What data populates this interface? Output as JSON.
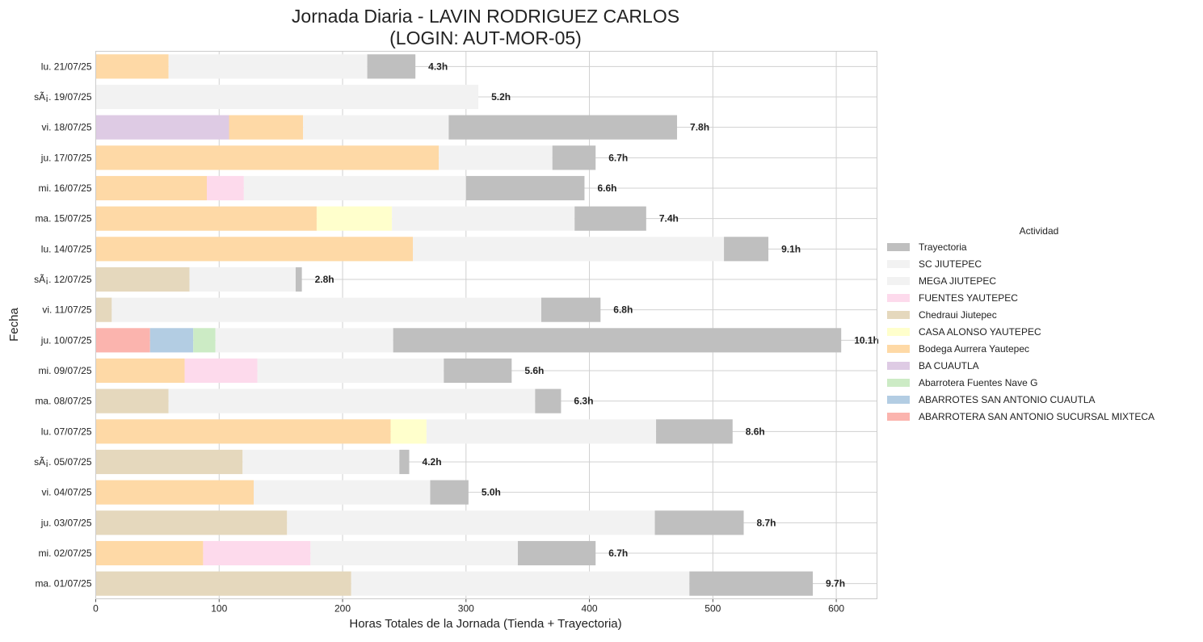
{
  "chart_data": {
    "type": "bar",
    "orientation": "horizontal",
    "stacked": true,
    "title": "Jornada Diaria - LAVIN RODRIGUEZ CARLOS",
    "subtitle": "(LOGIN: AUT-MOR-05)",
    "xlabel": "Horas Totales de la Jornada (Tienda + Trayectoria)",
    "ylabel": "Fecha",
    "xlim": [
      0,
      633
    ],
    "x_ticks": [
      0,
      100,
      200,
      300,
      400,
      500,
      600
    ],
    "grid": true,
    "legend_title": "Actividad",
    "legend_position": "center-right",
    "categories": [
      "lu. 21/07/25",
      "sÃ¡. 19/07/25",
      "vi. 18/07/25",
      "ju. 17/07/25",
      "mi. 16/07/25",
      "ma. 15/07/25",
      "lu. 14/07/25",
      "sÃ¡. 12/07/25",
      "vi. 11/07/25",
      "ju. 10/07/25",
      "mi. 09/07/25",
      "ma. 08/07/25",
      "lu. 07/07/25",
      "sÃ¡. 05/07/25",
      "vi. 04/07/25",
      "ju. 03/07/25",
      "mi. 02/07/25",
      "ma. 01/07/25"
    ],
    "legend": [
      {
        "name": "Trayectoria",
        "color": "#bfbfbf"
      },
      {
        "name": "SC JIUTEPEC",
        "color": "#f2f2f2"
      },
      {
        "name": "MEGA JIUTEPEC",
        "color": "#f2f2f2"
      },
      {
        "name": "FUENTES YAUTEPEC",
        "color": "#fddaec"
      },
      {
        "name": "Chedraui Jiutepec",
        "color": "#e5d8bd"
      },
      {
        "name": "CASA ALONSO YAUTEPEC",
        "color": "#ffffcc"
      },
      {
        "name": "Bodega Aurrera Yautepec",
        "color": "#fed9a6"
      },
      {
        "name": "BA CUAUTLA",
        "color": "#decbe4"
      },
      {
        "name": "Abarrotera Fuentes Nave G",
        "color": "#ccebc5"
      },
      {
        "name": "ABARROTES SAN ANTONIO CUAUTLA",
        "color": "#b3cde3"
      },
      {
        "name": "ABARROTERA SAN ANTONIO SUCURSAL MIXTECA",
        "color": "#fbb4ae"
      }
    ],
    "rows": [
      {
        "label": "4.3h",
        "segments": [
          {
            "series": "Bodega Aurrera Yautepec",
            "value": 59
          },
          {
            "series": "SC JIUTEPEC",
            "value": 161
          },
          {
            "series": "Trayectoria",
            "value": 39
          }
        ]
      },
      {
        "label": "5.2h",
        "segments": [
          {
            "series": "SC JIUTEPEC",
            "value": 310
          }
        ]
      },
      {
        "label": "7.8h",
        "segments": [
          {
            "series": "BA CUAUTLA",
            "value": 108
          },
          {
            "series": "Bodega Aurrera Yautepec",
            "value": 60
          },
          {
            "series": "SC JIUTEPEC",
            "value": 118
          },
          {
            "series": "Trayectoria",
            "value": 185
          }
        ]
      },
      {
        "label": "6.7h",
        "segments": [
          {
            "series": "Bodega Aurrera Yautepec",
            "value": 278
          },
          {
            "series": "SC JIUTEPEC",
            "value": 92
          },
          {
            "series": "Trayectoria",
            "value": 35
          }
        ]
      },
      {
        "label": "6.6h",
        "segments": [
          {
            "series": "Bodega Aurrera Yautepec",
            "value": 90
          },
          {
            "series": "FUENTES YAUTEPEC",
            "value": 30
          },
          {
            "series": "SC JIUTEPEC",
            "value": 180
          },
          {
            "series": "Trayectoria",
            "value": 96
          }
        ]
      },
      {
        "label": "7.4h",
        "segments": [
          {
            "series": "Bodega Aurrera Yautepec",
            "value": 179
          },
          {
            "series": "CASA ALONSO YAUTEPEC",
            "value": 61
          },
          {
            "series": "SC JIUTEPEC",
            "value": 148
          },
          {
            "series": "Trayectoria",
            "value": 58
          }
        ]
      },
      {
        "label": "9.1h",
        "segments": [
          {
            "series": "Bodega Aurrera Yautepec",
            "value": 257
          },
          {
            "series": "SC JIUTEPEC",
            "value": 252
          },
          {
            "series": "Trayectoria",
            "value": 36
          }
        ]
      },
      {
        "label": "2.8h",
        "segments": [
          {
            "series": "Chedraui Jiutepec",
            "value": 76
          },
          {
            "series": "SC JIUTEPEC",
            "value": 86
          },
          {
            "series": "Trayectoria",
            "value": 5
          }
        ]
      },
      {
        "label": "6.8h",
        "segments": [
          {
            "series": "Chedraui Jiutepec",
            "value": 13
          },
          {
            "series": "SC JIUTEPEC",
            "value": 348
          },
          {
            "series": "Trayectoria",
            "value": 48
          }
        ]
      },
      {
        "label": "10.1h",
        "segments": [
          {
            "series": "ABARROTERA SAN ANTONIO SUCURSAL MIXTECA",
            "value": 44
          },
          {
            "series": "ABARROTES SAN ANTONIO CUAUTLA",
            "value": 35
          },
          {
            "series": "Abarrotera Fuentes Nave G",
            "value": 18
          },
          {
            "series": "SC JIUTEPEC",
            "value": 144
          },
          {
            "series": "Trayectoria",
            "value": 363
          }
        ]
      },
      {
        "label": "5.6h",
        "segments": [
          {
            "series": "Bodega Aurrera Yautepec",
            "value": 72
          },
          {
            "series": "FUENTES YAUTEPEC",
            "value": 59
          },
          {
            "series": "SC JIUTEPEC",
            "value": 151
          },
          {
            "series": "Trayectoria",
            "value": 55
          }
        ]
      },
      {
        "label": "6.3h",
        "segments": [
          {
            "series": "Chedraui Jiutepec",
            "value": 59
          },
          {
            "series": "SC JIUTEPEC",
            "value": 297
          },
          {
            "series": "Trayectoria",
            "value": 21
          }
        ]
      },
      {
        "label": "8.6h",
        "segments": [
          {
            "series": "Bodega Aurrera Yautepec",
            "value": 239
          },
          {
            "series": "CASA ALONSO YAUTEPEC",
            "value": 29
          },
          {
            "series": "SC JIUTEPEC",
            "value": 186
          },
          {
            "series": "Trayectoria",
            "value": 62
          }
        ]
      },
      {
        "label": "4.2h",
        "segments": [
          {
            "series": "Chedraui Jiutepec",
            "value": 119
          },
          {
            "series": "SC JIUTEPEC",
            "value": 127
          },
          {
            "series": "Trayectoria",
            "value": 8
          }
        ]
      },
      {
        "label": "5.0h",
        "segments": [
          {
            "series": "Bodega Aurrera Yautepec",
            "value": 128
          },
          {
            "series": "SC JIUTEPEC",
            "value": 143
          },
          {
            "series": "Trayectoria",
            "value": 31
          }
        ]
      },
      {
        "label": "8.7h",
        "segments": [
          {
            "series": "Chedraui Jiutepec",
            "value": 155
          },
          {
            "series": "SC JIUTEPEC",
            "value": 298
          },
          {
            "series": "Trayectoria",
            "value": 72
          }
        ]
      },
      {
        "label": "6.7h",
        "segments": [
          {
            "series": "Bodega Aurrera Yautepec",
            "value": 87
          },
          {
            "series": "FUENTES YAUTEPEC",
            "value": 87
          },
          {
            "series": "SC JIUTEPEC",
            "value": 168
          },
          {
            "series": "Trayectoria",
            "value": 63
          }
        ]
      },
      {
        "label": "9.7h",
        "segments": [
          {
            "series": "Chedraui Jiutepec",
            "value": 207
          },
          {
            "series": "SC JIUTEPEC",
            "value": 274
          },
          {
            "series": "Trayectoria",
            "value": 100
          }
        ]
      }
    ]
  }
}
